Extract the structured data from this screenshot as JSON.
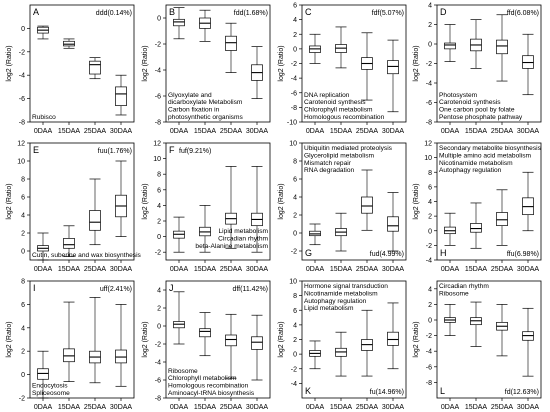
{
  "chart_data": [
    {
      "id": "A",
      "type": "box",
      "pattern": "ddd(0.14%)",
      "pattern_pos": "top-right",
      "ylabel": "log2 (Ratio)",
      "ylim": [
        -8,
        2
      ],
      "yticks": [
        -8,
        -6,
        -4,
        -2,
        0
      ],
      "categories": [
        "0DAA",
        "15DAA",
        "25DAA",
        "30DAA"
      ],
      "boxes": [
        {
          "min": -0.9,
          "q1": -0.4,
          "median": -0.15,
          "q3": 0.1,
          "max": 0.2
        },
        {
          "min": -1.7,
          "q1": -1.5,
          "median": -1.35,
          "q3": -1.1,
          "max": -0.9
        },
        {
          "min": -4.3,
          "q1": -3.9,
          "median": -3.1,
          "q3": -2.8,
          "max": -2.5
        },
        {
          "min": -7.4,
          "q1": -6.6,
          "median": -5.6,
          "q3": -5.0,
          "max": -4.0
        }
      ],
      "pathways": [
        "Rubisco"
      ],
      "pathways_pos": "bottom-left"
    },
    {
      "id": "B",
      "type": "box",
      "pattern": "fdd(1.68%)",
      "pattern_pos": "top-right",
      "ylabel": "log2 (Ratio)",
      "ylim": [
        -8,
        1
      ],
      "yticks": [
        -8,
        -6,
        -4,
        -2,
        0
      ],
      "categories": [
        "0DAA",
        "15DAA",
        "25DAA",
        "30DAA"
      ],
      "boxes": [
        {
          "min": -1.6,
          "q1": -0.6,
          "median": -0.3,
          "q3": -0.1,
          "max": 0.8
        },
        {
          "min": -1.8,
          "q1": -0.8,
          "median": -0.4,
          "q3": 0.0,
          "max": 0.6
        },
        {
          "min": -4.2,
          "q1": -2.5,
          "median": -1.9,
          "q3": -1.4,
          "max": -0.4
        },
        {
          "min": -6.2,
          "q1": -4.8,
          "median": -4.2,
          "q3": -3.6,
          "max": -2.2
        }
      ],
      "pathways": [
        "Glyoxylate and",
        "dicarboxylate Metabolism",
        "Carbon fixation in",
        "photosynthetic organisms"
      ],
      "pathways_pos": "bottom-left"
    },
    {
      "id": "C",
      "type": "box",
      "pattern": "fdf(5.07%)",
      "pattern_pos": "top-right",
      "ylabel": "log2 (Ratio)",
      "ylim": [
        -10,
        6
      ],
      "yticks": [
        -10,
        -8,
        -6,
        -4,
        -2,
        0,
        2,
        4,
        6
      ],
      "categories": [
        "0DAA",
        "15DAA",
        "25DAA",
        "30DAA"
      ],
      "boxes": [
        {
          "min": -2.0,
          "q1": -0.5,
          "median": 0.0,
          "q3": 0.4,
          "max": 2.0
        },
        {
          "min": -2.6,
          "q1": -0.5,
          "median": 0.1,
          "q3": 0.6,
          "max": 3.0
        },
        {
          "min": -7.0,
          "q1": -2.8,
          "median": -2.0,
          "q3": -1.2,
          "max": 2.2
        },
        {
          "min": -8.6,
          "q1": -3.4,
          "median": -2.4,
          "q3": -1.6,
          "max": 1.2
        }
      ],
      "pathways": [
        "DNA replication",
        "Carotenoid synthesis",
        "Chlorophyll metabolism",
        "Homologous recombination"
      ],
      "pathways_pos": "bottom-left"
    },
    {
      "id": "D",
      "type": "box",
      "pattern": "ffd(6.08%)",
      "pattern_pos": "top-right",
      "ylabel": "log2 (Ratio)",
      "ylim": [
        -8,
        4
      ],
      "yticks": [
        -8,
        -6,
        -4,
        -2,
        0,
        2,
        4
      ],
      "categories": [
        "0DAA",
        "15DAA",
        "25DAA",
        "30DAA"
      ],
      "boxes": [
        {
          "min": -1.8,
          "q1": -0.5,
          "median": -0.1,
          "q3": 0.1,
          "max": 2.0
        },
        {
          "min": -2.5,
          "q1": -0.7,
          "median": -0.1,
          "q3": 0.5,
          "max": 2.5
        },
        {
          "min": -3.8,
          "q1": -1.0,
          "median": -0.2,
          "q3": 0.4,
          "max": 3.0
        },
        {
          "min": -5.2,
          "q1": -2.5,
          "median": -1.9,
          "q3": -1.2,
          "max": 1.0
        }
      ],
      "pathways": [
        "Photosystem",
        "Carotenoid synthesis",
        "One carbon pool by folate",
        "Pentose phosphate pathway"
      ],
      "pathways_pos": "bottom-left"
    },
    {
      "id": "E",
      "type": "box",
      "pattern": "fuu(1.76%)",
      "pattern_pos": "top-right",
      "ylabel": "log2 (Ratio)",
      "ylim": [
        -1,
        12
      ],
      "yticks": [
        0,
        2,
        4,
        6,
        8,
        10,
        12
      ],
      "categories": [
        "0DAA",
        "15DAA",
        "25DAA",
        "30DAA"
      ],
      "boxes": [
        {
          "min": -1.0,
          "q1": 0.0,
          "median": 0.3,
          "q3": 0.6,
          "max": 2.0
        },
        {
          "min": -0.6,
          "q1": 0.3,
          "median": 0.7,
          "q3": 1.4,
          "max": 2.8
        },
        {
          "min": 0.7,
          "q1": 2.3,
          "median": 3.2,
          "q3": 4.5,
          "max": 8.0
        },
        {
          "min": 1.6,
          "q1": 3.8,
          "median": 5.0,
          "q3": 6.2,
          "max": 10.0
        }
      ],
      "pathways": [
        "Cutin, suberine and wax biosynthesis"
      ],
      "pathways_pos": "bottom-left"
    },
    {
      "id": "F",
      "type": "box",
      "pattern": "fuf(9.21%)",
      "pattern_pos": "top-left",
      "ylabel": "log2 (Ratio)",
      "ylim": [
        -3,
        12
      ],
      "yticks": [
        -2,
        0,
        2,
        4,
        6,
        8,
        10,
        12
      ],
      "categories": [
        "0DAA",
        "15DAA",
        "25DAA",
        "30DAA"
      ],
      "boxes": [
        {
          "min": -2.0,
          "q1": -0.2,
          "median": 0.3,
          "q3": 0.7,
          "max": 2.5
        },
        {
          "min": -2.0,
          "q1": 0.1,
          "median": 0.6,
          "q3": 1.2,
          "max": 4.0
        },
        {
          "min": -1.5,
          "q1": 1.6,
          "median": 2.3,
          "q3": 3.0,
          "max": 9.0
        },
        {
          "min": -2.0,
          "q1": 1.4,
          "median": 2.2,
          "q3": 3.0,
          "max": 9.0
        }
      ],
      "pathways": [
        "Lipid metabolism",
        "Circadian rhythm",
        "beta-Alanine metabolism"
      ],
      "pathways_pos": "bottom-right"
    },
    {
      "id": "G",
      "type": "box",
      "pattern": "fud(4.99%)",
      "pattern_pos": "bottom-right",
      "ylabel": "log2 (Ratio)",
      "ylim": [
        -3,
        10
      ],
      "yticks": [
        -2,
        0,
        2,
        4,
        6,
        8,
        10
      ],
      "categories": [
        "0DAA",
        "15DAA",
        "25DAA",
        "30DAA"
      ],
      "boxes": [
        {
          "min": -1.3,
          "q1": -0.3,
          "median": -0.1,
          "q3": 0.2,
          "max": 1.0
        },
        {
          "min": -2.0,
          "q1": -0.3,
          "median": 0.1,
          "q3": 0.5,
          "max": 2.2
        },
        {
          "min": 0.3,
          "q1": 2.2,
          "median": 3.0,
          "q3": 4.0,
          "max": 7.0
        },
        {
          "min": -2.0,
          "q1": 0.2,
          "median": 0.8,
          "q3": 1.8,
          "max": 4.5
        }
      ],
      "pathways": [
        "Ubiquitin mediated proteolysis",
        "Glycerolipid metabolism",
        "Mismatch repair",
        "RNA degradation"
      ],
      "pathways_pos": "top-left"
    },
    {
      "id": "H",
      "type": "box",
      "pattern": "ffu(6.98%)",
      "pattern_pos": "bottom-right",
      "ylabel": "log2 (Ratio)",
      "ylim": [
        -4,
        12
      ],
      "yticks": [
        -4,
        -2,
        0,
        2,
        4,
        6,
        8,
        10,
        12
      ],
      "categories": [
        "0DAA",
        "15DAA",
        "25DAA",
        "30DAA"
      ],
      "boxes": [
        {
          "min": -2.0,
          "q1": -0.4,
          "median": 0.0,
          "q3": 0.5,
          "max": 2.4
        },
        {
          "min": -2.4,
          "q1": -0.2,
          "median": 0.3,
          "q3": 1.0,
          "max": 3.8
        },
        {
          "min": -2.0,
          "q1": 0.7,
          "median": 1.5,
          "q3": 2.5,
          "max": 5.6
        },
        {
          "min": 0.0,
          "q1": 2.2,
          "median": 3.3,
          "q3": 4.5,
          "max": 8.0
        }
      ],
      "pathways": [
        "Secondary metabolite biosynthesis",
        "Multiple  amino acid metabolism",
        "Nicotinamide metabolism",
        "Autophagy regulation"
      ],
      "pathways_pos": "top-left"
    },
    {
      "id": "I",
      "type": "box",
      "pattern": "uff(2.41%)",
      "pattern_pos": "top-right",
      "ylabel": "log2 (Ratio)",
      "ylim": [
        -2,
        8
      ],
      "yticks": [
        -2,
        0,
        2,
        4,
        6,
        8
      ],
      "categories": [
        "0DAA",
        "15DAA",
        "25DAA",
        "30DAA"
      ],
      "boxes": [
        {
          "min": -2.0,
          "q1": -0.4,
          "median": 0.1,
          "q3": 0.5,
          "max": 2.0
        },
        {
          "min": -0.6,
          "q1": 1.1,
          "median": 1.6,
          "q3": 2.2,
          "max": 6.2
        },
        {
          "min": -0.7,
          "q1": 1.0,
          "median": 1.5,
          "q3": 2.0,
          "max": 6.6
        },
        {
          "min": -1.0,
          "q1": 1.0,
          "median": 1.5,
          "q3": 2.1,
          "max": 6.0
        }
      ],
      "pathways": [
        "Endocytosis",
        "Spliceosome"
      ],
      "pathways_pos": "bottom-left"
    },
    {
      "id": "J",
      "type": "box",
      "pattern": "dff(11.42%)",
      "pattern_pos": "top-right",
      "ylabel": "log2 (Ratio)",
      "ylim": [
        -8,
        5
      ],
      "yticks": [
        -8,
        -6,
        -4,
        -2,
        0,
        2,
        4
      ],
      "categories": [
        "0DAA",
        "15DAA",
        "25DAA",
        "30DAA"
      ],
      "boxes": [
        {
          "min": -2.0,
          "q1": -0.2,
          "median": 0.2,
          "q3": 0.5,
          "max": 3.8
        },
        {
          "min": -3.3,
          "q1": -1.2,
          "median": -0.6,
          "q3": -0.3,
          "max": 1.5
        },
        {
          "min": -5.8,
          "q1": -2.2,
          "median": -1.5,
          "q3": -1.0,
          "max": 1.3
        },
        {
          "min": -6.0,
          "q1": -2.6,
          "median": -1.8,
          "q3": -1.2,
          "max": 1.2
        }
      ],
      "pathways": [
        "Ribosome",
        "Chlorophyll metabolism",
        "Homologous recombination",
        "Aminoacyl-tRNA biosynthesis"
      ],
      "pathways_pos": "bottom-left"
    },
    {
      "id": "K",
      "type": "box",
      "pattern": "fu(14.96%)",
      "pattern_pos": "bottom-right",
      "ylabel": "log2 (Ratio)",
      "ylim": [
        -6,
        10
      ],
      "yticks": [
        -4,
        -2,
        0,
        2,
        4,
        6,
        8,
        10
      ],
      "categories": [
        "0DAA",
        "15DAA",
        "25DAA",
        "30DAA"
      ],
      "boxes": [
        {
          "min": -2.0,
          "q1": -0.3,
          "median": 0.1,
          "q3": 0.5,
          "max": 1.8
        },
        {
          "min": -3.0,
          "q1": -0.3,
          "median": 0.3,
          "q3": 0.8,
          "max": 3.0
        },
        {
          "min": -3.0,
          "q1": 0.5,
          "median": 1.3,
          "q3": 2.0,
          "max": 6.0
        },
        {
          "min": -2.0,
          "q1": 1.2,
          "median": 2.0,
          "q3": 3.0,
          "max": 7.0
        }
      ],
      "pathways": [
        "Hormone signal transduction",
        "Nicotinamide metabolism",
        "Autophagy regulation",
        "Lipid metabolism"
      ],
      "pathways_pos": "top-left"
    },
    {
      "id": "L",
      "type": "box",
      "pattern": "fd(12.63%)",
      "pattern_pos": "bottom-right",
      "ylabel": "log2 (Ratio)",
      "ylim": [
        -10,
        5
      ],
      "yticks": [
        -8,
        -6,
        -4,
        -2,
        0,
        2,
        4
      ],
      "categories": [
        "0DAA",
        "15DAA",
        "25DAA",
        "30DAA"
      ],
      "boxes": [
        {
          "min": -2.0,
          "q1": -0.3,
          "median": 0.0,
          "q3": 0.3,
          "max": 2.0
        },
        {
          "min": -3.4,
          "q1": -0.6,
          "median": -0.1,
          "q3": 0.3,
          "max": 2.3
        },
        {
          "min": -4.6,
          "q1": -1.3,
          "median": -0.8,
          "q3": -0.3,
          "max": 2.0
        },
        {
          "min": -7.2,
          "q1": -2.6,
          "median": -2.0,
          "q3": -1.5,
          "max": 1.5
        }
      ],
      "pathways": [
        "Circadian rhythm",
        "Ribosome"
      ],
      "pathways_pos": "top-left"
    }
  ]
}
